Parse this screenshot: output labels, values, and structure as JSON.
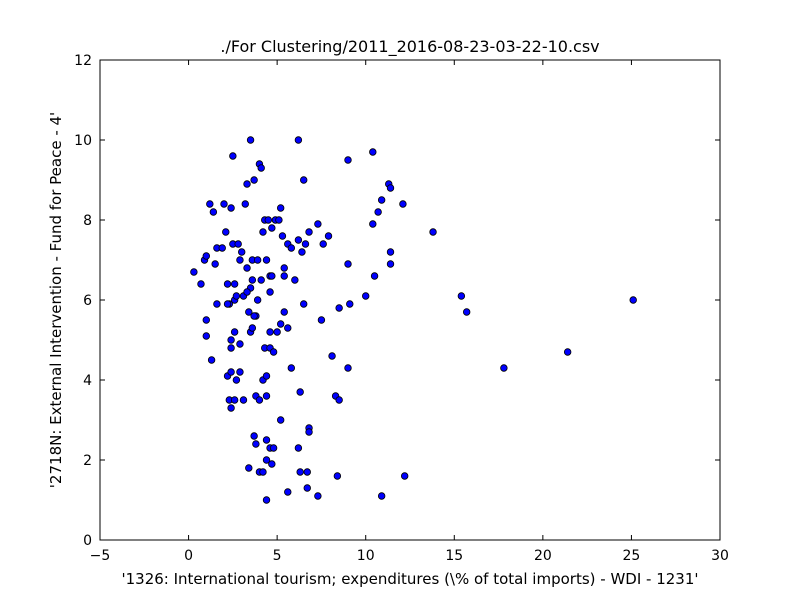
{
  "chart_data": {
    "type": "scatter",
    "title": "./For Clustering/2011_2016-08-23-03-22-10.csv",
    "xlabel": "'1326: International tourism; expenditures  (\\% of total imports) - WDI - 1231'",
    "ylabel": "'2718N: External Intervention - Fund for Peace - 4'",
    "xlim": [
      -5,
      30
    ],
    "ylim": [
      0,
      12
    ],
    "xticks": [
      -5,
      0,
      5,
      10,
      15,
      20,
      25,
      30
    ],
    "yticks": [
      0,
      2,
      4,
      6,
      8,
      10,
      12
    ],
    "xtick_labels": [
      "−5",
      "0",
      "5",
      "10",
      "15",
      "20",
      "25",
      "30"
    ],
    "ytick_labels": [
      "0",
      "2",
      "4",
      "6",
      "8",
      "10",
      "12"
    ],
    "grid": false,
    "marker_color": "#0000ff",
    "marker_edge_color": "#000000",
    "points": [
      [
        0.3,
        6.7
      ],
      [
        0.7,
        6.4
      ],
      [
        0.9,
        7.0
      ],
      [
        1.0,
        7.1
      ],
      [
        1.2,
        8.4
      ],
      [
        1.4,
        8.2
      ],
      [
        1.5,
        6.9
      ],
      [
        1.6,
        7.3
      ],
      [
        1.9,
        7.3
      ],
      [
        2.0,
        8.4
      ],
      [
        2.1,
        7.7
      ],
      [
        2.2,
        6.4
      ],
      [
        2.3,
        5.9
      ],
      [
        2.4,
        8.3
      ],
      [
        2.5,
        9.6
      ],
      [
        2.5,
        7.4
      ],
      [
        2.6,
        6.4
      ],
      [
        2.6,
        6.0
      ],
      [
        2.7,
        6.1
      ],
      [
        2.8,
        7.4
      ],
      [
        2.9,
        7.0
      ],
      [
        3.0,
        7.2
      ],
      [
        3.1,
        6.1
      ],
      [
        3.2,
        8.4
      ],
      [
        3.3,
        8.9
      ],
      [
        3.3,
        6.8
      ],
      [
        3.5,
        10.0
      ],
      [
        3.6,
        6.5
      ],
      [
        3.6,
        7.0
      ],
      [
        3.7,
        9.0
      ],
      [
        3.9,
        7.0
      ],
      [
        4.0,
        9.4
      ],
      [
        4.1,
        9.3
      ],
      [
        4.2,
        7.7
      ],
      [
        4.3,
        8.0
      ],
      [
        4.4,
        7.0
      ],
      [
        4.5,
        8.0
      ],
      [
        4.6,
        6.6
      ],
      [
        4.7,
        7.8
      ],
      [
        4.9,
        8.0
      ],
      [
        5.1,
        8.0
      ],
      [
        5.2,
        8.3
      ],
      [
        5.3,
        7.6
      ],
      [
        5.4,
        6.8
      ],
      [
        5.6,
        7.4
      ],
      [
        5.8,
        7.3
      ],
      [
        6.0,
        6.5
      ],
      [
        6.2,
        7.5
      ],
      [
        6.4,
        7.2
      ],
      [
        6.6,
        7.4
      ],
      [
        6.8,
        7.7
      ],
      [
        7.3,
        7.9
      ],
      [
        7.6,
        7.4
      ],
      [
        7.9,
        7.6
      ],
      [
        6.2,
        10.0
      ],
      [
        6.5,
        9.0
      ],
      [
        9.0,
        9.5
      ],
      [
        10.4,
        9.7
      ],
      [
        11.3,
        8.9
      ],
      [
        11.4,
        8.8
      ],
      [
        10.9,
        8.5
      ],
      [
        10.7,
        8.2
      ],
      [
        12.1,
        8.4
      ],
      [
        10.4,
        7.9
      ],
      [
        11.4,
        7.2
      ],
      [
        11.4,
        6.9
      ],
      [
        10.5,
        6.6
      ],
      [
        9.0,
        6.9
      ],
      [
        13.8,
        7.7
      ],
      [
        15.4,
        6.1
      ],
      [
        15.7,
        5.7
      ],
      [
        25.1,
        6.0
      ],
      [
        21.4,
        4.7
      ],
      [
        17.8,
        4.3
      ],
      [
        1.0,
        5.5
      ],
      [
        1.0,
        5.1
      ],
      [
        1.3,
        4.5
      ],
      [
        1.6,
        5.9
      ],
      [
        2.2,
        5.9
      ],
      [
        2.4,
        5.0
      ],
      [
        2.4,
        4.8
      ],
      [
        2.6,
        5.2
      ],
      [
        2.9,
        4.9
      ],
      [
        3.4,
        5.7
      ],
      [
        3.5,
        5.2
      ],
      [
        3.6,
        5.3
      ],
      [
        3.8,
        5.6
      ],
      [
        3.9,
        6.0
      ],
      [
        4.1,
        6.5
      ],
      [
        4.3,
        4.8
      ],
      [
        4.6,
        4.8
      ],
      [
        4.6,
        5.2
      ],
      [
        4.8,
        4.7
      ],
      [
        5.0,
        5.2
      ],
      [
        5.2,
        5.4
      ],
      [
        5.4,
        5.7
      ],
      [
        5.6,
        5.3
      ],
      [
        6.5,
        5.9
      ],
      [
        7.5,
        5.5
      ],
      [
        8.1,
        4.6
      ],
      [
        8.5,
        5.8
      ],
      [
        9.1,
        5.9
      ],
      [
        10.0,
        6.1
      ],
      [
        9.0,
        4.3
      ],
      [
        2.2,
        4.1
      ],
      [
        2.4,
        4.2
      ],
      [
        2.7,
        4.0
      ],
      [
        2.9,
        4.2
      ],
      [
        2.3,
        3.5
      ],
      [
        2.6,
        3.5
      ],
      [
        2.4,
        3.3
      ],
      [
        3.1,
        3.5
      ],
      [
        3.8,
        3.6
      ],
      [
        4.0,
        3.5
      ],
      [
        4.2,
        4.0
      ],
      [
        4.4,
        4.1
      ],
      [
        4.4,
        3.6
      ],
      [
        5.8,
        4.3
      ],
      [
        6.3,
        3.7
      ],
      [
        8.3,
        3.6
      ],
      [
        8.5,
        3.5
      ],
      [
        3.7,
        2.6
      ],
      [
        3.8,
        2.4
      ],
      [
        4.4,
        2.5
      ],
      [
        4.6,
        2.3
      ],
      [
        4.8,
        2.3
      ],
      [
        5.2,
        3.0
      ],
      [
        6.2,
        2.3
      ],
      [
        6.8,
        2.8
      ],
      [
        6.8,
        2.7
      ],
      [
        3.4,
        1.8
      ],
      [
        4.0,
        1.7
      ],
      [
        4.2,
        1.7
      ],
      [
        4.4,
        2.0
      ],
      [
        4.7,
        1.9
      ],
      [
        6.3,
        1.7
      ],
      [
        6.7,
        1.7
      ],
      [
        5.6,
        1.2
      ],
      [
        6.7,
        1.3
      ],
      [
        7.3,
        1.1
      ],
      [
        8.4,
        1.6
      ],
      [
        10.9,
        1.1
      ],
      [
        12.2,
        1.6
      ],
      [
        4.4,
        1.0
      ],
      [
        3.5,
        6.3
      ],
      [
        3.7,
        5.6
      ],
      [
        4.6,
        6.2
      ],
      [
        3.3,
        6.2
      ],
      [
        4.7,
        6.6
      ],
      [
        5.4,
        6.6
      ]
    ]
  }
}
